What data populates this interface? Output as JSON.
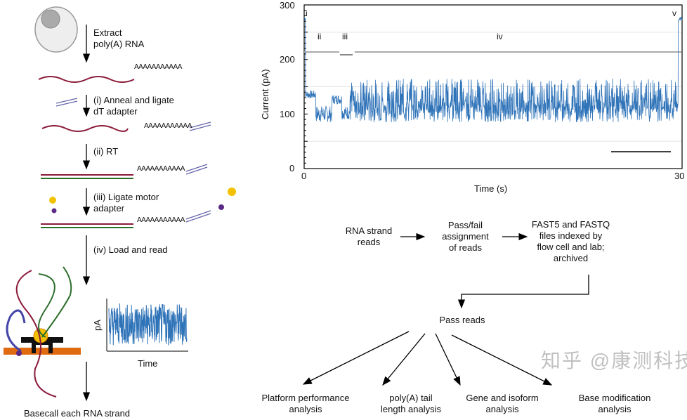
{
  "protocol": {
    "steps": [
      {
        "label": "Extract\npoly(A) RNA"
      },
      {
        "label": "(i) Anneal and ligate\ndT adapter"
      },
      {
        "label": "(ii) RT"
      },
      {
        "label": "(iii) Ligate motor\nadapter"
      },
      {
        "label": "(iv) Load and read"
      }
    ],
    "polyA": "AAAAAAAAAAA",
    "inset_ylabel": "pA",
    "inset_xlabel": "Time",
    "final": "Basecall each RNA strand"
  },
  "trace": {
    "ylabel": "Current (pA)",
    "xlabel": "Time (s)",
    "yticks": [
      "0",
      "100",
      "200",
      "300"
    ],
    "xticks": [
      "0",
      "30"
    ],
    "ylim": [
      0,
      300
    ],
    "xlim": [
      0,
      30
    ],
    "regions": [
      "i",
      "ii",
      "iii",
      "iv",
      "v"
    ],
    "color": "#2f73b8"
  },
  "workflow": {
    "rna_reads": "RNA strand\nreads",
    "passfail": "Pass/fail\nassignment\nof reads",
    "fast5": "FAST5 and FASTQ\nfiles indexed by\nflow cell and lab;\narchived",
    "pass_reads": "Pass reads",
    "outputs": [
      "Platform performance\nanalysis",
      "poly(A) tail\nlength analysis",
      "Gene and isoform\nanalysis",
      "Base modification\nanalysis"
    ]
  },
  "watermark": "知乎 @康测科技"
}
